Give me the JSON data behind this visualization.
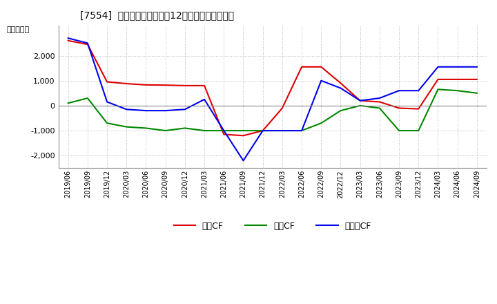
{
  "title": "[7554]  キャッシュフローの12か月移動合計の推移",
  "ylabel": "（百万円）",
  "background_color": "#ffffff",
  "grid_color": "#aaaaaa",
  "line_color_zero": "#888888",
  "series": {
    "営業CF": {
      "color": "#dd0000",
      "data": {
        "2019/06": 2600,
        "2019/09": 2450,
        "2019/12": 950,
        "2020/03": 880,
        "2020/06": 830,
        "2020/09": 820,
        "2020/12": 800,
        "2021/03": 800,
        "2021/06": -1150,
        "2021/09": -1200,
        "2021/12": -1000,
        "2022/03": -100,
        "2022/06": 1550,
        "2022/09": 1550,
        "2022/12": 900,
        "2023/03": 200,
        "2023/06": 150,
        "2023/09": -100,
        "2023/12": -130,
        "2024/03": 1050,
        "2024/06": 1050,
        "2024/09": 1050
      }
    },
    "投資CF": {
      "color": "#008800",
      "data": {
        "2019/06": 100,
        "2019/09": 300,
        "2019/12": -700,
        "2020/03": -850,
        "2020/06": -900,
        "2020/09": -1000,
        "2020/12": -900,
        "2021/03": -1000,
        "2021/06": -1000,
        "2021/09": -1000,
        "2021/12": -1000,
        "2022/03": -1000,
        "2022/06": -1000,
        "2022/09": -700,
        "2022/12": -200,
        "2023/03": 0,
        "2023/06": -100,
        "2023/09": -1000,
        "2023/12": -1000,
        "2024/03": 650,
        "2024/06": 600,
        "2024/09": 500
      }
    },
    "フリーCF": {
      "color": "#0000ee",
      "data": {
        "2019/06": 2700,
        "2019/09": 2500,
        "2019/12": 150,
        "2020/03": -150,
        "2020/06": -200,
        "2020/09": -200,
        "2020/12": -150,
        "2021/03": 250,
        "2021/06": -1000,
        "2021/09": -2200,
        "2021/12": -1000,
        "2022/03": -1000,
        "2022/06": -1000,
        "2022/09": 1000,
        "2022/12": 700,
        "2023/03": 200,
        "2023/06": 300,
        "2023/09": 600,
        "2023/12": 600,
        "2024/03": 1550,
        "2024/06": 1550,
        "2024/09": 1550
      }
    }
  },
  "xtick_labels": [
    "2019/06",
    "2019/09",
    "2019/12",
    "2020/03",
    "2020/06",
    "2020/09",
    "2020/12",
    "2021/03",
    "2021/06",
    "2021/09",
    "2021/12",
    "2022/03",
    "2022/06",
    "2022/09",
    "2022/12",
    "2023/03",
    "2023/06",
    "2023/09",
    "2023/12",
    "2024/03",
    "2024/06",
    "2024/09"
  ],
  "ylim": [
    -2500,
    3200
  ],
  "yticks": [
    -2000,
    -1000,
    0,
    1000,
    2000
  ]
}
